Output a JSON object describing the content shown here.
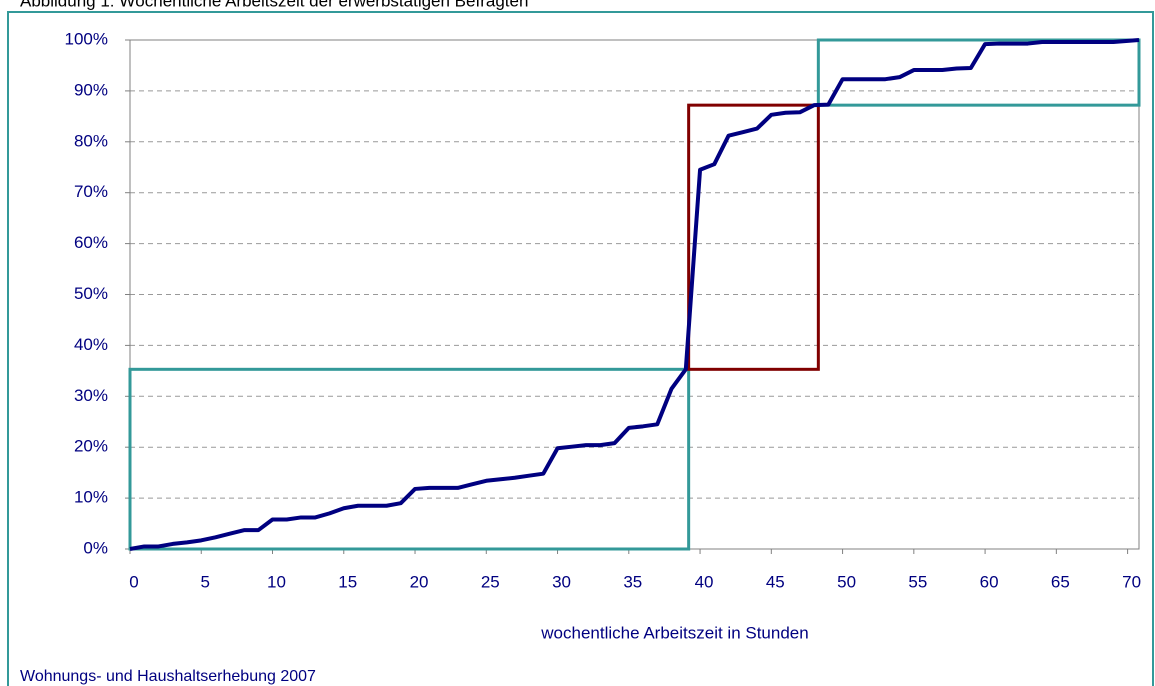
{
  "chart_data": {
    "type": "line",
    "title": "Abbildung 1: Wöchentliche Arbeitszeit der erwerbstätigen Befragten",
    "xlabel": "wochentliche Arbeitszeit in Stunden",
    "source": "Wohnungs- und Haushaltserhebung 2007",
    "color": "#000080",
    "x": [
      0,
      1,
      2,
      3,
      4,
      5,
      6,
      7,
      8,
      9,
      10,
      11,
      12,
      13,
      14,
      15,
      16,
      17,
      18,
      19,
      20,
      21,
      22,
      23,
      24,
      25,
      26,
      27,
      28,
      29,
      30,
      31,
      32,
      33,
      34,
      35,
      36,
      37,
      38,
      39,
      40,
      41,
      42,
      43,
      44,
      45,
      46,
      47,
      48,
      49,
      50,
      51,
      52,
      53,
      54,
      55,
      56,
      57,
      58,
      59,
      60,
      61,
      62,
      63,
      64,
      65,
      66,
      67,
      68,
      69,
      70.8
    ],
    "values": [
      0,
      0.5,
      0.5,
      1,
      1.3,
      1.7,
      2.3,
      3,
      3.7,
      3.7,
      5.8,
      5.8,
      6.2,
      6.2,
      7,
      8,
      8.5,
      8.5,
      8.5,
      9,
      11.8,
      12,
      12,
      12,
      12.7,
      13.4,
      13.7,
      14,
      14.4,
      14.8,
      19.8,
      20.1,
      20.4,
      20.4,
      20.8,
      23.8,
      24.1,
      24.5,
      31.5,
      35.3,
      74.5,
      75.6,
      81.2,
      81.9,
      82.6,
      85.3,
      85.7,
      85.8,
      87.2,
      87.3,
      92.3,
      92.3,
      92.3,
      92.3,
      92.7,
      94.1,
      94.1,
      94.1,
      94.4,
      94.5,
      99.2,
      99.3,
      99.3,
      99.3,
      99.6,
      99.6,
      99.6,
      99.6,
      99.6,
      99.6,
      100
    ],
    "boxes": [
      {
        "color": "#339999",
        "x": [
          0,
          39.2
        ],
        "y": [
          0,
          35.3
        ]
      },
      {
        "color": "#800000",
        "x": [
          39.2,
          48.3
        ],
        "y": [
          35.3,
          87.2
        ]
      },
      {
        "color": "#339999",
        "x": [
          48.3,
          70.8
        ],
        "y": [
          87.2,
          100
        ]
      }
    ],
    "xlim": [
      0,
      70.8
    ],
    "ylim": [
      0,
      100
    ],
    "xticks": [
      0,
      5,
      10,
      15,
      20,
      25,
      30,
      35,
      40,
      45,
      50,
      55,
      60,
      65,
      70
    ],
    "yticks": [
      {
        "value": 0,
        "label": "0%"
      },
      {
        "value": 10,
        "label": "10%"
      },
      {
        "value": 20,
        "label": "20%"
      },
      {
        "value": 30,
        "label": "30%"
      },
      {
        "value": 40,
        "label": "40%"
      },
      {
        "value": 50,
        "label": "50%"
      },
      {
        "value": 60,
        "label": "60%"
      },
      {
        "value": 70,
        "label": "70%"
      },
      {
        "value": 80,
        "label": "80%"
      },
      {
        "value": 90,
        "label": "90%"
      },
      {
        "value": 100,
        "label": "100%"
      }
    ],
    "grid": true
  }
}
